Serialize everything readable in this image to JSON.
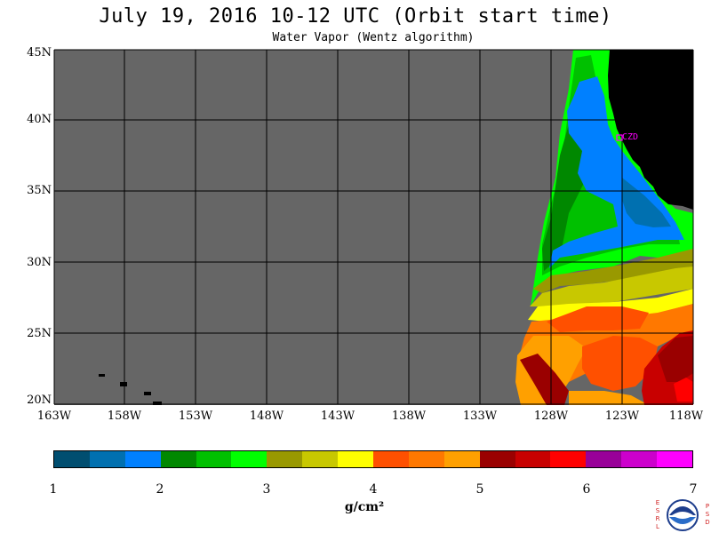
{
  "title": "July 19, 2016  10-12 UTC  (Orbit start time)",
  "subtitle": "Water Vapor (Wentz algorithm)",
  "map": {
    "lat_labels": [
      "45N",
      "40N",
      "35N",
      "30N",
      "25N",
      "20N"
    ],
    "lon_labels": [
      "163W",
      "158W",
      "153W",
      "148W",
      "143W",
      "138W",
      "133W",
      "128W",
      "123W",
      "118W"
    ],
    "station_label": "CZD",
    "colors": {
      "no_data": "#666666",
      "land": "#000000",
      "grid": "#000000",
      "station": "#ff00ff"
    }
  },
  "colorbar": {
    "units": "g/cm²",
    "tick_labels": [
      "1",
      "2",
      "3",
      "4",
      "5",
      "6",
      "7"
    ],
    "colors": [
      "#004e70",
      "#0070b0",
      "#0080ff",
      "#008800",
      "#00c000",
      "#00ff00",
      "#999900",
      "#c8c800",
      "#ffff00",
      "#ff5000",
      "#ff7800",
      "#ffa000",
      "#9a0000",
      "#c80000",
      "#ff0000",
      "#990099",
      "#cc00cc",
      "#ff00ff"
    ]
  },
  "logo": {
    "left_letters": "ESRL",
    "right_letters": "PSD",
    "seal_text": "NOAA"
  }
}
